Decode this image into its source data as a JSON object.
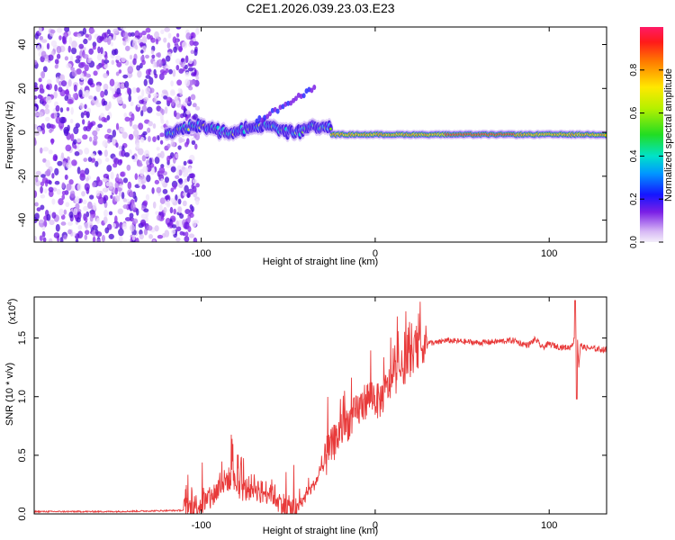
{
  "title": "C2E1.2026.039.23.03.E23",
  "chart_data": [
    {
      "type": "heatmap",
      "name": "spectrogram",
      "xlabel": "Height of straight line (km)",
      "ylabel": "Frequency (Hz)",
      "xlim": [
        -196,
        133
      ],
      "ylim": [
        -50,
        48
      ],
      "xticks": [
        -100,
        0,
        100
      ],
      "yticks": [
        -40,
        -20,
        0,
        20,
        40
      ],
      "colorbar": {
        "label": "Normalized spectral amplitude",
        "range": [
          0,
          1
        ],
        "ticks": [
          "0.0",
          "0.2",
          "0.4",
          "0.6",
          "0.8"
        ],
        "tick_values": [
          0.0,
          0.2,
          0.4,
          0.6,
          0.8
        ]
      },
      "features": {
        "noise_region_km": [
          -196,
          -108
        ],
        "signal_track_km": [
          -120,
          133
        ],
        "signal_frequency_hz": -1,
        "secondary_trace_km": [
          -68,
          -35
        ],
        "secondary_trace_hz": [
          5,
          20
        ]
      }
    },
    {
      "type": "line",
      "name": "snr",
      "xlabel": "Height of straight line (km)",
      "ylabel": "SNR (10 * v/v)",
      "y_multiplier": "(x10",
      "y_multiplier_exp": "4",
      "y_multiplier_close": ")",
      "xlim": [
        -196,
        133
      ],
      "ylim": [
        0,
        1.85
      ],
      "xticks": [
        -100,
        0,
        100
      ],
      "yticks": [
        "0.0",
        "0.5",
        "1.0",
        "1.5"
      ],
      "ytick_values": [
        0.0,
        0.5,
        1.0,
        1.5
      ],
      "series": [
        {
          "name": "SNR",
          "color": "#e83a3a",
          "x": [
            -196,
            -150,
            -110,
            -103,
            -95,
            -90,
            -85,
            -80,
            -75,
            -70,
            -65,
            -60,
            -55,
            -50,
            -45,
            -40,
            -35,
            -30,
            -26,
            -22,
            -18,
            -14,
            -10,
            -6,
            -2,
            2,
            6,
            10,
            14,
            18,
            22,
            26,
            30,
            36,
            40,
            50,
            60,
            70,
            80,
            84,
            88,
            92,
            96,
            100,
            104,
            108,
            112,
            115,
            116,
            117,
            118,
            120,
            125,
            133
          ],
          "y": [
            0.02,
            0.02,
            0.03,
            0.07,
            0.12,
            0.22,
            0.3,
            0.26,
            0.2,
            0.24,
            0.18,
            0.2,
            0.1,
            0.05,
            0.04,
            0.15,
            0.25,
            0.4,
            0.55,
            0.65,
            0.75,
            0.8,
            0.88,
            0.96,
            1.02,
            0.95,
            1.05,
            1.15,
            1.22,
            1.28,
            1.36,
            1.42,
            1.46,
            1.46,
            1.48,
            1.47,
            1.46,
            1.47,
            1.48,
            1.45,
            1.44,
            1.49,
            1.42,
            1.45,
            1.43,
            1.42,
            1.42,
            1.5,
            1.6,
            1.25,
            1.44,
            1.42,
            1.41,
            1.4
          ]
        }
      ]
    }
  ]
}
